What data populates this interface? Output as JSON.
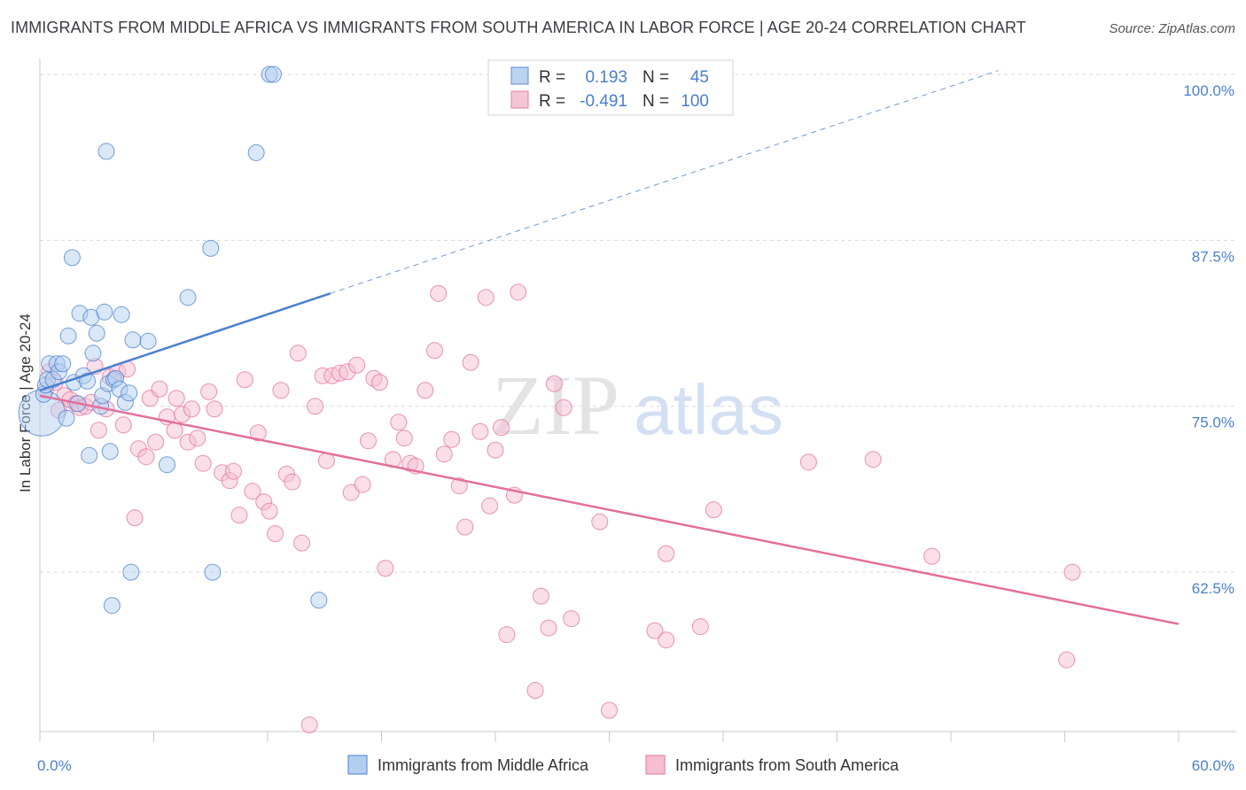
{
  "title": "IMMIGRANTS FROM MIDDLE AFRICA VS IMMIGRANTS FROM SOUTH AMERICA IN LABOR FORCE | AGE 20-24 CORRELATION CHART",
  "source": "Source: ZipAtlas.com",
  "colors": {
    "blue": "#4a7fd0",
    "blue_fill": "#b3cff0",
    "pink": "#e3709a",
    "pink_fill": "#f5bfd1",
    "grid": "#d8d8de",
    "axis": "#c8c8cc"
  },
  "chart_data": {
    "type": "scatter",
    "xlabel": "",
    "ylabel": "In Labor Force | Age 20-24",
    "xlim": [
      0,
      60
    ],
    "ylim": [
      50.5,
      101.2
    ],
    "x_tick_labels": [
      {
        "value": 0,
        "label": "0.0%"
      },
      {
        "value": 60,
        "label": "60.0%"
      }
    ],
    "y_tick_labels": [
      {
        "value": 100,
        "label": "100.0%"
      },
      {
        "value": 87.5,
        "label": "87.5%"
      },
      {
        "value": 75,
        "label": "75.0%"
      },
      {
        "value": 62.5,
        "label": "62.5%"
      }
    ],
    "grid": "horizontal dashed",
    "legend_position": "top-center",
    "legend": [
      {
        "r_label": "R =",
        "r_value": "0.193",
        "n_label": "N =",
        "n_value": "45"
      },
      {
        "r_label": "R =",
        "r_value": "-0.491",
        "n_label": "N =",
        "n_value": "100"
      }
    ],
    "series": [
      {
        "name": "Immigrants from Middle Africa",
        "color": "#4a7fd0",
        "trend": {
          "x": [
            0,
            15.3
          ],
          "y": [
            76.2,
            83.5
          ],
          "dashed_extension_to_x": 50.5
        },
        "points": [
          {
            "x": 0.1,
            "y": 74.5,
            "s": 26
          },
          {
            "x": 0.2,
            "y": 75.9
          },
          {
            "x": 0.3,
            "y": 76.6
          },
          {
            "x": 0.4,
            "y": 77.0
          },
          {
            "x": 0.5,
            "y": 78.2
          },
          {
            "x": 0.7,
            "y": 77.0
          },
          {
            "x": 0.9,
            "y": 78.2
          },
          {
            "x": 1.0,
            "y": 77.6
          },
          {
            "x": 1.2,
            "y": 78.2
          },
          {
            "x": 1.4,
            "y": 74.1
          },
          {
            "x": 1.5,
            "y": 80.3
          },
          {
            "x": 1.7,
            "y": 86.2
          },
          {
            "x": 1.8,
            "y": 76.8
          },
          {
            "x": 2.0,
            "y": 75.2
          },
          {
            "x": 2.1,
            "y": 82.0
          },
          {
            "x": 2.3,
            "y": 77.3
          },
          {
            "x": 2.5,
            "y": 76.9
          },
          {
            "x": 2.6,
            "y": 71.3
          },
          {
            "x": 2.7,
            "y": 81.7
          },
          {
            "x": 2.8,
            "y": 79.0
          },
          {
            "x": 3.0,
            "y": 80.5
          },
          {
            "x": 3.2,
            "y": 75.0
          },
          {
            "x": 3.3,
            "y": 75.8
          },
          {
            "x": 3.4,
            "y": 82.1
          },
          {
            "x": 3.5,
            "y": 94.2
          },
          {
            "x": 3.6,
            "y": 76.7
          },
          {
            "x": 3.7,
            "y": 71.6
          },
          {
            "x": 3.8,
            "y": 60.0
          },
          {
            "x": 3.9,
            "y": 77.0
          },
          {
            "x": 4.0,
            "y": 77.1
          },
          {
            "x": 4.2,
            "y": 76.3
          },
          {
            "x": 4.3,
            "y": 81.9
          },
          {
            "x": 4.5,
            "y": 75.3
          },
          {
            "x": 4.7,
            "y": 76.0
          },
          {
            "x": 4.8,
            "y": 62.5
          },
          {
            "x": 4.9,
            "y": 80.0
          },
          {
            "x": 5.7,
            "y": 79.9
          },
          {
            "x": 6.7,
            "y": 70.6
          },
          {
            "x": 7.8,
            "y": 83.2
          },
          {
            "x": 9.0,
            "y": 86.9
          },
          {
            "x": 9.1,
            "y": 62.5
          },
          {
            "x": 11.4,
            "y": 94.1
          },
          {
            "x": 12.1,
            "y": 100.0
          },
          {
            "x": 12.3,
            "y": 100.0
          },
          {
            "x": 14.7,
            "y": 60.4
          }
        ]
      },
      {
        "name": "Immigrants from South America",
        "color": "#e3709a",
        "trend": {
          "x": [
            0,
            60
          ],
          "y": [
            75.8,
            58.6
          ]
        },
        "points": [
          {
            "x": 0.3,
            "y": 76.2
          },
          {
            "x": 0.5,
            "y": 77.6
          },
          {
            "x": 0.8,
            "y": 76.8
          },
          {
            "x": 1.0,
            "y": 74.7
          },
          {
            "x": 1.3,
            "y": 75.8
          },
          {
            "x": 1.6,
            "y": 75.5
          },
          {
            "x": 1.9,
            "y": 75.2
          },
          {
            "x": 2.1,
            "y": 74.9
          },
          {
            "x": 2.4,
            "y": 75.0
          },
          {
            "x": 2.7,
            "y": 75.3
          },
          {
            "x": 2.9,
            "y": 78.0
          },
          {
            "x": 3.1,
            "y": 73.2
          },
          {
            "x": 3.5,
            "y": 74.8
          },
          {
            "x": 3.7,
            "y": 77.2
          },
          {
            "x": 4.1,
            "y": 77.6
          },
          {
            "x": 4.4,
            "y": 73.6
          },
          {
            "x": 4.6,
            "y": 77.8
          },
          {
            "x": 5.0,
            "y": 66.6
          },
          {
            "x": 5.2,
            "y": 71.8
          },
          {
            "x": 5.6,
            "y": 71.2
          },
          {
            "x": 5.8,
            "y": 75.6
          },
          {
            "x": 6.1,
            "y": 72.3
          },
          {
            "x": 6.3,
            "y": 76.3
          },
          {
            "x": 6.7,
            "y": 74.2
          },
          {
            "x": 7.1,
            "y": 73.2
          },
          {
            "x": 7.2,
            "y": 75.6
          },
          {
            "x": 7.5,
            "y": 74.4
          },
          {
            "x": 7.8,
            "y": 72.3
          },
          {
            "x": 8.0,
            "y": 74.8
          },
          {
            "x": 8.3,
            "y": 72.6
          },
          {
            "x": 8.6,
            "y": 70.7
          },
          {
            "x": 8.9,
            "y": 76.1
          },
          {
            "x": 9.2,
            "y": 74.8
          },
          {
            "x": 9.6,
            "y": 70.0
          },
          {
            "x": 10.0,
            "y": 69.4
          },
          {
            "x": 10.2,
            "y": 70.1
          },
          {
            "x": 10.5,
            "y": 66.8
          },
          {
            "x": 10.8,
            "y": 77.0
          },
          {
            "x": 11.2,
            "y": 68.6
          },
          {
            "x": 11.5,
            "y": 73.0
          },
          {
            "x": 11.8,
            "y": 67.8
          },
          {
            "x": 12.1,
            "y": 67.1
          },
          {
            "x": 12.4,
            "y": 65.4
          },
          {
            "x": 12.7,
            "y": 76.2
          },
          {
            "x": 13.0,
            "y": 69.9
          },
          {
            "x": 13.3,
            "y": 69.3
          },
          {
            "x": 13.6,
            "y": 79.0
          },
          {
            "x": 13.8,
            "y": 64.7
          },
          {
            "x": 14.2,
            "y": 51.0
          },
          {
            "x": 14.5,
            "y": 75.0
          },
          {
            "x": 14.9,
            "y": 77.3
          },
          {
            "x": 15.1,
            "y": 70.9
          },
          {
            "x": 15.4,
            "y": 77.3
          },
          {
            "x": 15.8,
            "y": 77.5
          },
          {
            "x": 16.2,
            "y": 77.6
          },
          {
            "x": 16.4,
            "y": 68.5
          },
          {
            "x": 16.7,
            "y": 78.1
          },
          {
            "x": 17.0,
            "y": 69.1
          },
          {
            "x": 17.3,
            "y": 72.4
          },
          {
            "x": 17.6,
            "y": 77.1
          },
          {
            "x": 17.9,
            "y": 76.8
          },
          {
            "x": 18.2,
            "y": 62.8
          },
          {
            "x": 18.6,
            "y": 71.0
          },
          {
            "x": 18.9,
            "y": 73.8
          },
          {
            "x": 19.2,
            "y": 72.6
          },
          {
            "x": 19.5,
            "y": 70.7
          },
          {
            "x": 19.8,
            "y": 70.5
          },
          {
            "x": 20.3,
            "y": 76.2
          },
          {
            "x": 20.8,
            "y": 79.2
          },
          {
            "x": 21.0,
            "y": 83.5
          },
          {
            "x": 21.3,
            "y": 71.4
          },
          {
            "x": 21.7,
            "y": 72.5
          },
          {
            "x": 22.1,
            "y": 69.0
          },
          {
            "x": 22.4,
            "y": 65.9
          },
          {
            "x": 22.7,
            "y": 78.3
          },
          {
            "x": 23.2,
            "y": 73.1
          },
          {
            "x": 23.5,
            "y": 83.2
          },
          {
            "x": 23.7,
            "y": 67.5
          },
          {
            "x": 24.0,
            "y": 71.7
          },
          {
            "x": 24.3,
            "y": 73.4
          },
          {
            "x": 24.6,
            "y": 57.8
          },
          {
            "x": 25.0,
            "y": 68.3
          },
          {
            "x": 25.2,
            "y": 83.6
          },
          {
            "x": 26.1,
            "y": 53.6
          },
          {
            "x": 26.4,
            "y": 60.7
          },
          {
            "x": 26.8,
            "y": 58.3
          },
          {
            "x": 27.1,
            "y": 76.7
          },
          {
            "x": 27.6,
            "y": 74.9
          },
          {
            "x": 28.0,
            "y": 59.0
          },
          {
            "x": 29.5,
            "y": 66.3
          },
          {
            "x": 30.0,
            "y": 52.1
          },
          {
            "x": 32.4,
            "y": 58.1
          },
          {
            "x": 33.0,
            "y": 63.9
          },
          {
            "x": 33.0,
            "y": 57.4
          },
          {
            "x": 34.8,
            "y": 58.4
          },
          {
            "x": 35.5,
            "y": 67.2
          },
          {
            "x": 40.5,
            "y": 70.8
          },
          {
            "x": 43.9,
            "y": 71.0
          },
          {
            "x": 47.0,
            "y": 63.7
          },
          {
            "x": 54.1,
            "y": 55.9
          },
          {
            "x": 54.4,
            "y": 62.5
          }
        ]
      }
    ]
  },
  "watermark": {
    "zip": "ZIP",
    "atlas": "atlas"
  }
}
